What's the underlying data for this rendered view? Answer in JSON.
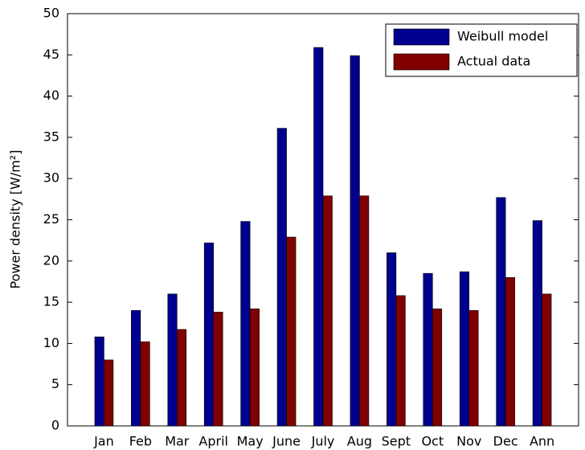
{
  "chart_data": {
    "type": "bar",
    "ylabel": "Power density [W/m²]",
    "categories": [
      "Jan",
      "Feb",
      "Mar",
      "April",
      "May",
      "June",
      "July",
      "Aug",
      "Sept",
      "Oct",
      "Nov",
      "Dec",
      "Ann"
    ],
    "series": [
      {
        "name": "Weibull model",
        "color": "#00008f",
        "values": [
          10.8,
          14,
          16,
          22.2,
          24.8,
          36.1,
          45.9,
          44.9,
          21,
          18.5,
          18.7,
          27.7,
          24.9
        ]
      },
      {
        "name": "Actual data",
        "color": "#800000",
        "values": [
          8,
          10.2,
          11.7,
          13.8,
          14.2,
          22.9,
          27.9,
          27.9,
          15.8,
          14.2,
          14,
          18,
          16
        ]
      }
    ],
    "ylim": [
      0,
      50
    ],
    "yticks": [
      0,
      5,
      10,
      15,
      20,
      25,
      30,
      35,
      40,
      45,
      50
    ],
    "grid": false,
    "legend": "upper right"
  }
}
